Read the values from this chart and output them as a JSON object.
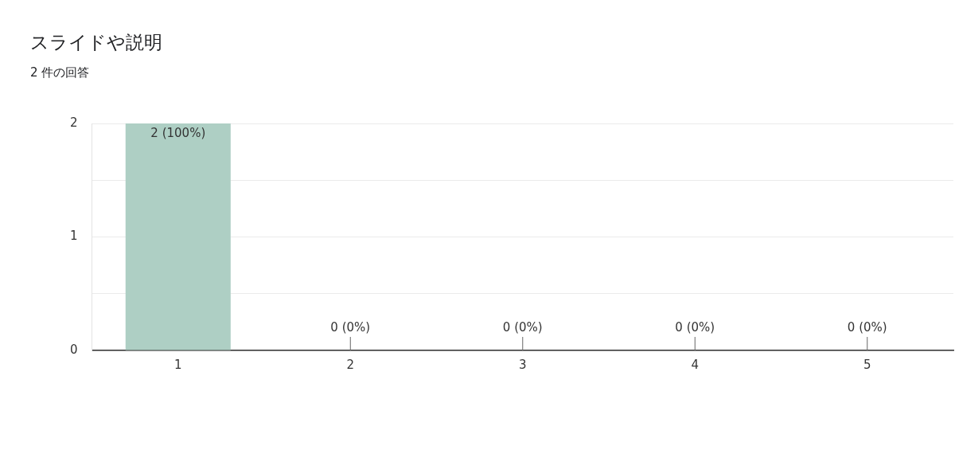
{
  "chart_data": {
    "type": "bar",
    "title": "スライドや説明",
    "subtitle": "2 件の回答",
    "categories": [
      "1",
      "2",
      "3",
      "4",
      "5"
    ],
    "values": [
      2,
      0,
      0,
      0,
      0
    ],
    "value_labels": [
      "2 (100%)",
      "0 (0%)",
      "0 (0%)",
      "0 (0%)",
      "0 (0%)"
    ],
    "color": "#aecfc4",
    "ylim": [
      0,
      2
    ],
    "yticks": [
      0,
      {
        "value": 0.5,
        "label": null
      },
      1,
      {
        "value": 1.5,
        "label": null
      },
      2
    ],
    "grid": "y",
    "legend": false
  }
}
